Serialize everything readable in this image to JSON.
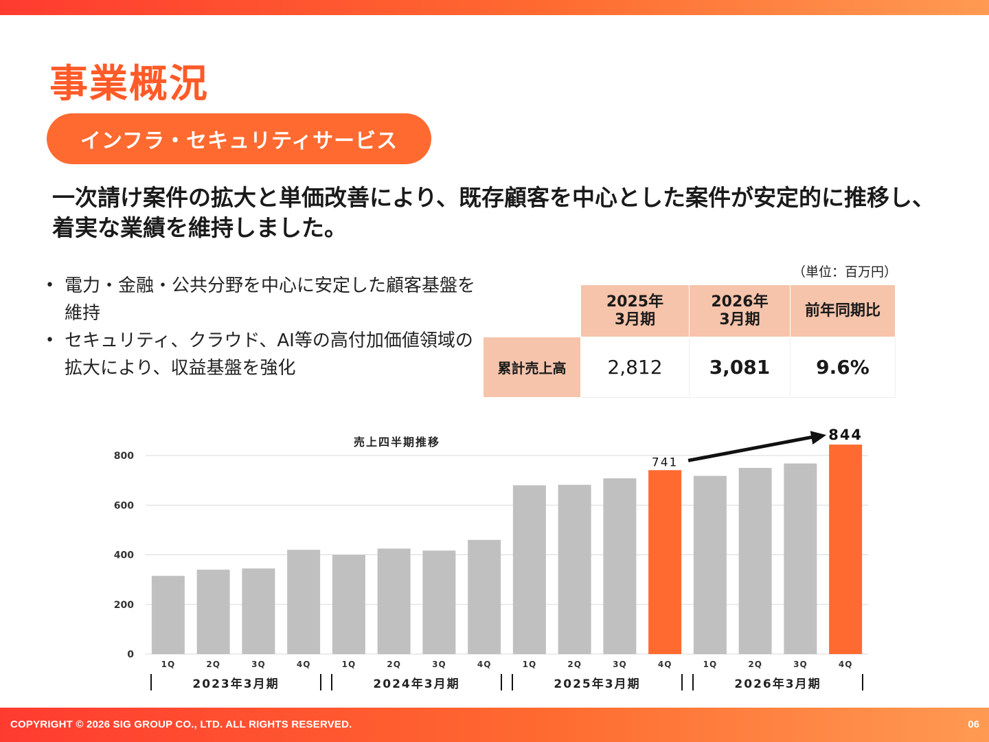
{
  "header": {
    "title": "事業概況",
    "section": "インフラ・セキュリティサービス"
  },
  "headline": "一次請け案件の拡大と単価改善により、既存顧客を中心とした案件が安定的に推移し、着実な業績を維持しました。",
  "bullets": [
    "電力・金融・公共分野を中心に安定した顧客基盤を維持",
    "セキュリティ、クラウド、AI等の高付加価値領域の拡大により、収益基盤を強化"
  ],
  "summary_table": {
    "unit": "（単位：百万円）",
    "col1_line1": "2025年",
    "col1_line2": "3月期",
    "col2_line1": "2026年",
    "col2_line2": "3月期",
    "col3": "前年同期比",
    "row_label": "累計売上高",
    "val1": "2,812",
    "val2": "3,081",
    "val3": "9.6%"
  },
  "chart_data": {
    "type": "bar",
    "title": "売上四半期推移",
    "categories": [
      "1Q",
      "2Q",
      "3Q",
      "4Q",
      "1Q",
      "2Q",
      "3Q",
      "4Q",
      "1Q",
      "2Q",
      "3Q",
      "4Q",
      "1Q",
      "2Q",
      "3Q",
      "4Q"
    ],
    "values": [
      315,
      340,
      345,
      420,
      400,
      425,
      417,
      460,
      680,
      682,
      708,
      741,
      718,
      750,
      768,
      844
    ],
    "highlight_indices": [
      11,
      15
    ],
    "data_labels": [
      {
        "index": 11,
        "text": "741"
      },
      {
        "index": 15,
        "text": "844"
      }
    ],
    "groups": [
      "2023年3月期",
      "2024年3月期",
      "2025年3月期",
      "2026年3月期"
    ],
    "yticks": [
      "0",
      "200",
      "400",
      "600",
      "800"
    ],
    "ylim": [
      0,
      800
    ],
    "grid": true,
    "bar_color": "#c0c0c0",
    "highlight_color": "#ff6a30",
    "arrow": {
      "from_index": 11,
      "to_index": 15
    }
  },
  "footer": {
    "copyright": "COPYRIGHT © 2026 SIG GROUP CO., LTD. ALL RIGHTS RESERVED.",
    "page": "06"
  }
}
